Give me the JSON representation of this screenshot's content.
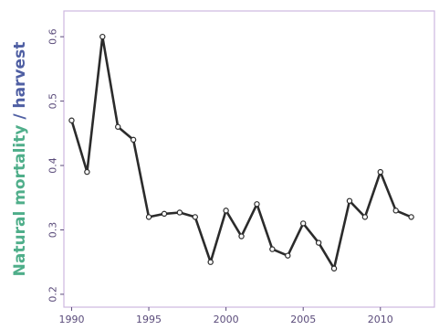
{
  "chart_data": {
    "type": "line",
    "title": "",
    "xlabel": "",
    "ylabel_parts": [
      {
        "text": "Natural mortality",
        "color": "#4fae8a"
      },
      {
        "text": " / ",
        "color": "#4f5fa3"
      },
      {
        "text": "harvest",
        "color": "#4f5fa3"
      }
    ],
    "x": [
      1990,
      1991,
      1992,
      1993,
      1994,
      1995,
      1996,
      1997,
      1998,
      1999,
      2000,
      2001,
      2002,
      2003,
      2004,
      2005,
      2006,
      2007,
      2008,
      2009,
      2010,
      2011,
      2012
    ],
    "series": [
      {
        "values": [
          0.47,
          0.39,
          0.6,
          0.46,
          0.44,
          0.32,
          0.325,
          0.327,
          0.32,
          0.25,
          0.33,
          0.29,
          0.34,
          0.27,
          0.26,
          0.31,
          0.28,
          0.24,
          0.345,
          0.32,
          0.39,
          0.33,
          0.32
        ],
        "color": "#2b2b2b"
      }
    ],
    "xlim": [
      1989.5,
      2013.5
    ],
    "ylim": [
      0.18,
      0.64
    ],
    "xticks": [
      1990,
      1995,
      2000,
      2005,
      2010
    ],
    "xtick_labels": [
      "1990",
      "1995",
      "2000",
      "2005",
      "2010"
    ],
    "yticks": [
      0.2,
      0.3,
      0.4,
      0.5,
      0.6
    ],
    "ytick_labels": [
      "0.2",
      "0.3",
      "0.4",
      "0.5",
      "0.6"
    ],
    "grid": false,
    "frame_color": "#cdb8e0"
  }
}
